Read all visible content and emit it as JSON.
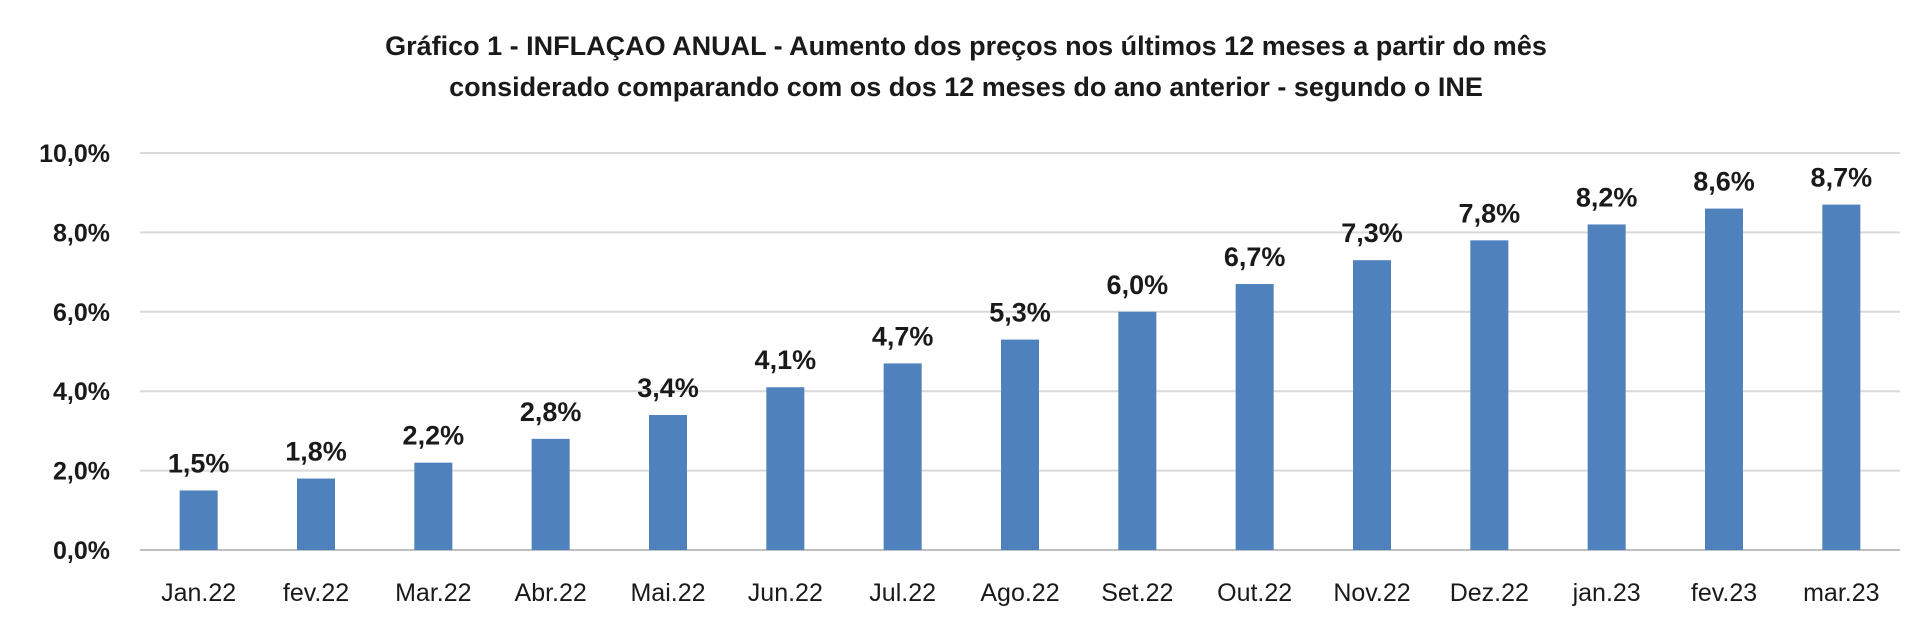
{
  "chart_data": {
    "type": "bar",
    "title": [
      "Gráfico 1 - INFLAÇAO ANUAL - Aumento dos preços nos últimos 12 meses a partir do mês",
      "considerado comparando com os dos 12 meses do ano anterior - segundo o INE"
    ],
    "xlabel": "",
    "ylabel": "",
    "categories": [
      "Jan.22",
      "fev.22",
      "Mar.22",
      "Abr.22",
      "Mai.22",
      "Jun.22",
      "Jul.22",
      "Ago.22",
      "Set.22",
      "Out.22",
      "Nov.22",
      "Dez.22",
      "jan.23",
      "fev.23",
      "mar.23"
    ],
    "values": [
      1.5,
      1.8,
      2.2,
      2.8,
      3.4,
      4.1,
      4.7,
      5.3,
      6.0,
      6.7,
      7.3,
      7.8,
      8.2,
      8.6,
      8.7
    ],
    "data_labels": [
      "1,5%",
      "1,8%",
      "2,2%",
      "2,8%",
      "3,4%",
      "4,1%",
      "4,7%",
      "5,3%",
      "6,0%",
      "6,7%",
      "7,3%",
      "7,8%",
      "8,2%",
      "8,6%",
      "8,7%"
    ],
    "ylim": [
      0,
      10
    ],
    "yticks": [
      0,
      2,
      4,
      6,
      8,
      10
    ],
    "ytick_labels": [
      "0,0%",
      "2,0%",
      "4,0%",
      "6,0%",
      "8,0%",
      "10,0%"
    ],
    "grid": true,
    "legend": "none",
    "colors": {
      "bar": "#4f81bd",
      "grid": "#d9d9d9",
      "axis": "#bfbfbf",
      "text": "#1a1a1a"
    }
  }
}
